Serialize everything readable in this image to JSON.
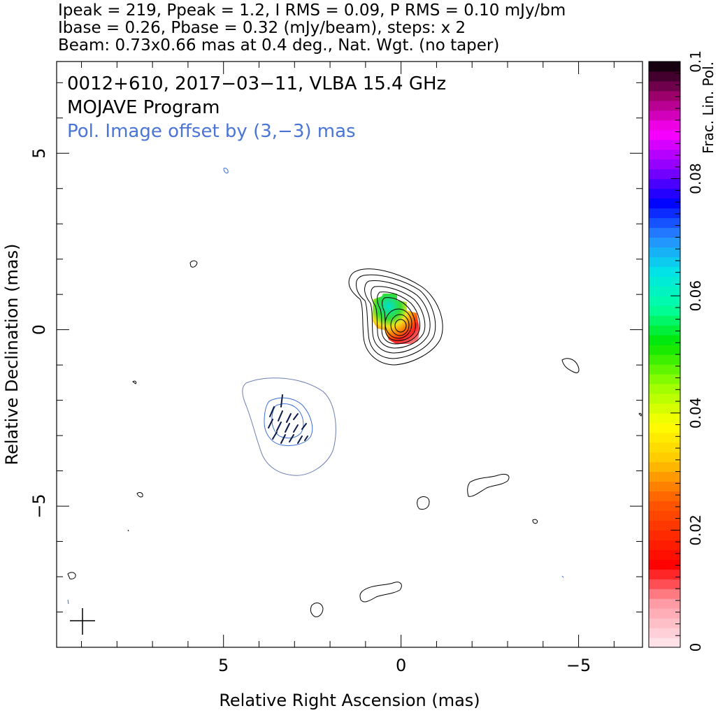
{
  "header": {
    "line1": "Ipeak = 219, Ppeak = 1.2, I RMS = 0.09, P RMS = 0.10 mJy/bm",
    "line2": "Ibase = 0.26, Pbase = 0.32 (mJy/beam), steps: x 2",
    "line3": "Beam: 0.73x0.66 mas at 0.4 deg., Nat. Wgt. (no taper)"
  },
  "annotations": {
    "source": "0012+610, 2017−03−11, VLBA 15.4 GHz",
    "program": "MOJAVE Program",
    "pol_offset": "Pol. Image offset by (3,−3) mas"
  },
  "colors": {
    "stokes_i_contour": "#000000",
    "pol_contour": "#3b6fd4",
    "pol_offset_text": "#4a74d6",
    "evpa_vectors": "#0b1a4a"
  },
  "chart_data": {
    "type": "contour",
    "title": "0012+610, 2017−03−11, VLBA 15.4 GHz",
    "xlabel": "Relative Right Ascension (mas)",
    "ylabel": "Relative Declination (mas)",
    "xlim": [
      9.7,
      -6.8
    ],
    "ylim": [
      -9.0,
      7.6
    ],
    "x_ticks": [
      5,
      0,
      -5
    ],
    "x_tick_labels": [
      "5",
      "0",
      "−5"
    ],
    "y_ticks": [
      5,
      0,
      -5
    ],
    "y_tick_labels": [
      "5",
      "0",
      "−5"
    ],
    "minor_tick_step": 1,
    "colorbar": {
      "label": "Frac. Lin. Pol.",
      "range": [
        0,
        0.1
      ],
      "tick_values": [
        0,
        0.02,
        0.04,
        0.06,
        0.08,
        0.1
      ],
      "tick_labels": [
        "0",
        "0.02",
        "0.04",
        "0.06",
        "0.08",
        "0.1"
      ]
    },
    "stokes_i": {
      "peak_mJy_per_beam": 219,
      "rms_mJy_per_beam": 0.09,
      "base_mJy_per_beam": 0.26,
      "step_factor": 2,
      "core_position_mas": [
        0,
        0
      ]
    },
    "polarization": {
      "peak_mJy_per_beam": 1.2,
      "rms_mJy_per_beam": 0.1,
      "base_mJy_per_beam": 0.32,
      "offset_mas": [
        3,
        -3
      ],
      "frac_pol_peak_region": [
        {
          "ra": 0.0,
          "dec": 0.1,
          "frac": 0.008
        },
        {
          "ra": 0.3,
          "dec": 0.5,
          "frac": 0.018
        },
        {
          "ra": 0.5,
          "dec": 0.7,
          "frac": 0.035
        },
        {
          "ra": 0.6,
          "dec": 0.8,
          "frac": 0.05
        },
        {
          "ra": 0.7,
          "dec": 0.6,
          "frac": 0.06
        }
      ]
    },
    "beam": {
      "major_mas": 0.73,
      "minor_mas": 0.66,
      "pa_deg": 0.4,
      "weighting": "Nat. Wgt. (no taper)"
    }
  }
}
